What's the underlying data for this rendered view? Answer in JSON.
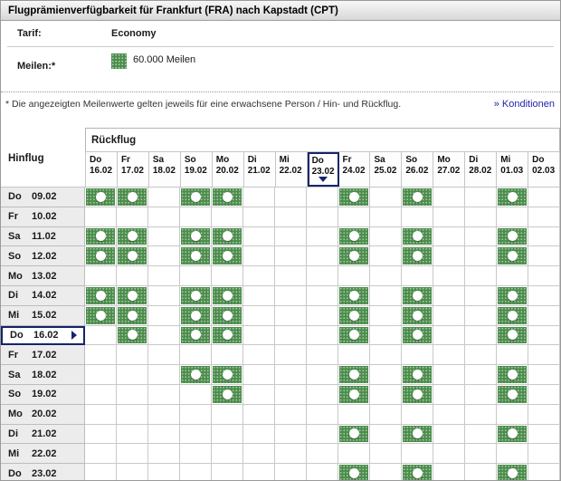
{
  "window": {
    "title": "Flugprämienverfügbarkeit für Frankfurt (FRA) nach Kapstadt (CPT)"
  },
  "fare": {
    "label": "Tarif:",
    "value": "Economy"
  },
  "miles": {
    "label": "Meilen:*",
    "value": "60.000 Meilen"
  },
  "footnote": {
    "text": "* Die angezeigten Meilenwerte gelten jeweils für eine erwachsene Person / Hin- und Rückflug.",
    "link_label": "» Konditionen"
  },
  "calendar": {
    "return_axis_label": "Rückflug",
    "outbound_axis_label": "Hinflug",
    "selected_return_index": 7,
    "selected_outbound_index": 7,
    "return_dates": [
      {
        "day": "Do",
        "date": "16.02"
      },
      {
        "day": "Fr",
        "date": "17.02"
      },
      {
        "day": "Sa",
        "date": "18.02"
      },
      {
        "day": "So",
        "date": "19.02"
      },
      {
        "day": "Mo",
        "date": "20.02"
      },
      {
        "day": "Di",
        "date": "21.02"
      },
      {
        "day": "Mi",
        "date": "22.02"
      },
      {
        "day": "Do",
        "date": "23.02"
      },
      {
        "day": "Fr",
        "date": "24.02"
      },
      {
        "day": "Sa",
        "date": "25.02"
      },
      {
        "day": "So",
        "date": "26.02"
      },
      {
        "day": "Mo",
        "date": "27.02"
      },
      {
        "day": "Di",
        "date": "28.02"
      },
      {
        "day": "Mi",
        "date": "01.03"
      },
      {
        "day": "Do",
        "date": "02.03"
      }
    ],
    "outbound_dates": [
      {
        "day": "Do",
        "date": "09.02"
      },
      {
        "day": "Fr",
        "date": "10.02"
      },
      {
        "day": "Sa",
        "date": "11.02"
      },
      {
        "day": "So",
        "date": "12.02"
      },
      {
        "day": "Mo",
        "date": "13.02"
      },
      {
        "day": "Di",
        "date": "14.02"
      },
      {
        "day": "Mi",
        "date": "15.02"
      },
      {
        "day": "Do",
        "date": "16.02"
      },
      {
        "day": "Fr",
        "date": "17.02"
      },
      {
        "day": "Sa",
        "date": "18.02"
      },
      {
        "day": "So",
        "date": "19.02"
      },
      {
        "day": "Mo",
        "date": "20.02"
      },
      {
        "day": "Di",
        "date": "21.02"
      },
      {
        "day": "Mi",
        "date": "22.02"
      },
      {
        "day": "Do",
        "date": "23.02"
      }
    ],
    "availability": [
      [
        1,
        1,
        0,
        1,
        1,
        0,
        0,
        0,
        1,
        0,
        1,
        0,
        0,
        1,
        0
      ],
      [
        0,
        0,
        0,
        0,
        0,
        0,
        0,
        0,
        0,
        0,
        0,
        0,
        0,
        0,
        0
      ],
      [
        1,
        1,
        0,
        1,
        1,
        0,
        0,
        0,
        1,
        0,
        1,
        0,
        0,
        1,
        0
      ],
      [
        1,
        1,
        0,
        1,
        1,
        0,
        0,
        0,
        1,
        0,
        1,
        0,
        0,
        1,
        0
      ],
      [
        0,
        0,
        0,
        0,
        0,
        0,
        0,
        0,
        0,
        0,
        0,
        0,
        0,
        0,
        0
      ],
      [
        1,
        1,
        0,
        1,
        1,
        0,
        0,
        0,
        1,
        0,
        1,
        0,
        0,
        1,
        0
      ],
      [
        1,
        1,
        0,
        1,
        1,
        0,
        0,
        0,
        1,
        0,
        1,
        0,
        0,
        1,
        0
      ],
      [
        0,
        1,
        0,
        1,
        1,
        0,
        0,
        0,
        1,
        0,
        1,
        0,
        0,
        1,
        0
      ],
      [
        0,
        0,
        0,
        0,
        0,
        0,
        0,
        0,
        0,
        0,
        0,
        0,
        0,
        0,
        0
      ],
      [
        0,
        0,
        0,
        1,
        1,
        0,
        0,
        0,
        1,
        0,
        1,
        0,
        0,
        1,
        0
      ],
      [
        0,
        0,
        0,
        0,
        1,
        0,
        0,
        0,
        1,
        0,
        1,
        0,
        0,
        1,
        0
      ],
      [
        0,
        0,
        0,
        0,
        0,
        0,
        0,
        0,
        0,
        0,
        0,
        0,
        0,
        0,
        0
      ],
      [
        0,
        0,
        0,
        0,
        0,
        0,
        0,
        0,
        1,
        0,
        1,
        0,
        0,
        1,
        0
      ],
      [
        0,
        0,
        0,
        0,
        0,
        0,
        0,
        0,
        0,
        0,
        0,
        0,
        0,
        0,
        0
      ],
      [
        0,
        0,
        0,
        0,
        0,
        0,
        0,
        0,
        1,
        0,
        1,
        0,
        0,
        1,
        0
      ]
    ]
  },
  "colors": {
    "availability_green": "#4a8c4a",
    "selection_navy": "#14246b",
    "link_blue": "#2222aa",
    "grid_line": "#c6c6c6",
    "row_label_bg": "#ececec"
  }
}
